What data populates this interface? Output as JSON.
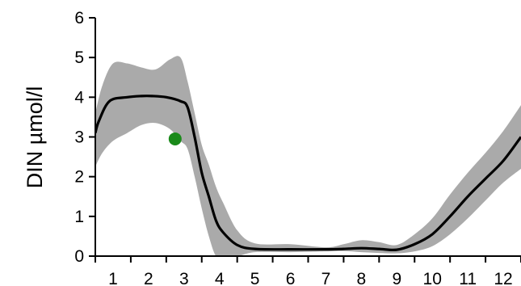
{
  "chart_data": {
    "type": "line",
    "title": "",
    "xlabel": "",
    "ylabel": "DIN µmol/l",
    "xlim": [
      0.5,
      12.5
    ],
    "ylim": [
      0,
      6
    ],
    "xticks": [
      1,
      2,
      3,
      4,
      5,
      6,
      7,
      8,
      9,
      10,
      11,
      12
    ],
    "yticks": [
      0,
      1,
      2,
      3,
      4,
      5,
      6
    ],
    "grid": false,
    "legend": "none",
    "series": [
      {
        "kind": "line",
        "color": "#000000",
        "x": [
          0.5,
          0.6,
          0.9,
          1.4,
          1.8,
          2.1,
          2.5,
          2.9,
          3.1,
          3.3,
          3.5,
          3.7,
          3.9,
          4.1,
          4.5,
          5.0,
          6.0,
          7.0,
          7.5,
          8.0,
          8.5,
          9.0,
          9.5,
          10.0,
          10.5,
          11.0,
          11.5,
          12.0,
          12.5
        ],
        "y": [
          3.1,
          3.4,
          3.9,
          4.0,
          4.03,
          4.03,
          4.0,
          3.9,
          3.75,
          3.0,
          2.1,
          1.5,
          0.9,
          0.6,
          0.28,
          0.18,
          0.17,
          0.17,
          0.18,
          0.2,
          0.18,
          0.16,
          0.3,
          0.55,
          1.0,
          1.5,
          1.95,
          2.4,
          3.0
        ]
      },
      {
        "kind": "band",
        "color": "#aaaaaa",
        "x": [
          0.5,
          0.7,
          1.0,
          1.4,
          1.8,
          2.2,
          2.6,
          2.9,
          3.1,
          3.3,
          3.5,
          3.7,
          3.9,
          4.1,
          4.5,
          5.0,
          6.0,
          7.0,
          7.5,
          8.0,
          8.5,
          9.0,
          9.5,
          10.0,
          10.5,
          11.0,
          11.5,
          12.0,
          12.5
        ],
        "upper": [
          3.6,
          4.3,
          4.85,
          4.85,
          4.75,
          4.7,
          4.95,
          5.0,
          4.4,
          3.6,
          2.8,
          2.3,
          1.75,
          1.35,
          0.65,
          0.32,
          0.3,
          0.22,
          0.3,
          0.4,
          0.35,
          0.28,
          0.55,
          0.95,
          1.55,
          2.1,
          2.6,
          3.15,
          3.8
        ],
        "lower": [
          2.25,
          2.6,
          2.9,
          3.1,
          3.3,
          3.35,
          3.2,
          2.9,
          2.7,
          2.0,
          1.2,
          0.5,
          0.0,
          0.0,
          0.0,
          0.1,
          0.1,
          0.12,
          0.13,
          0.1,
          0.08,
          0.07,
          0.12,
          0.25,
          0.55,
          0.95,
          1.4,
          1.85,
          2.2
        ]
      },
      {
        "kind": "point",
        "color": "#1a8a1a",
        "x": [
          2.75
        ],
        "y": [
          2.95
        ]
      }
    ]
  }
}
